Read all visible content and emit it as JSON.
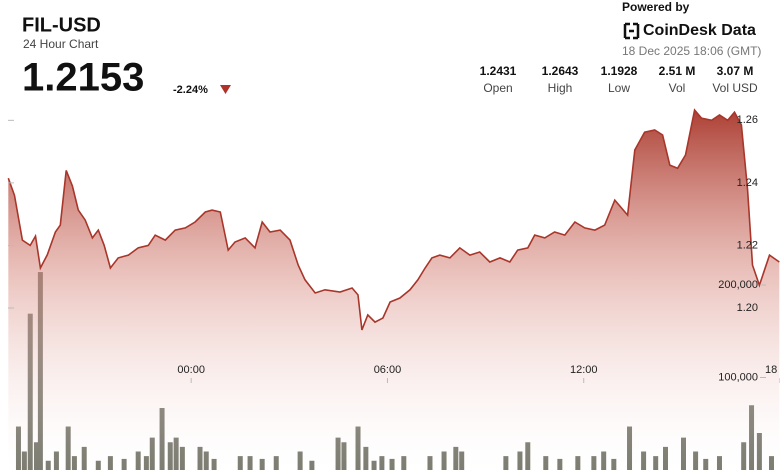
{
  "header": {
    "title": "FIL-USD",
    "subtitle": "24 Hour Chart",
    "price": "1.2153",
    "change": "-2.24%",
    "powered_by": "Powered by",
    "brand": "CoinDesk Data",
    "timestamp": "18 Dec 2025 18:06 (GMT)",
    "stats": [
      {
        "value": "1.2431",
        "label": "Open"
      },
      {
        "value": "1.2643",
        "label": "High"
      },
      {
        "value": "1.1928",
        "label": "Low"
      },
      {
        "value": "2.51 M",
        "label": "Vol"
      },
      {
        "value": "3.07 M",
        "label": "Vol USD"
      }
    ]
  },
  "chart_data": {
    "type": "line",
    "xlim": [
      -5.6,
      18
    ],
    "xticks": [
      {
        "value": 0,
        "label": "00:00"
      },
      {
        "value": 6,
        "label": "06:00"
      },
      {
        "value": 12,
        "label": "12:00"
      },
      {
        "value": 18,
        "label": "18"
      }
    ],
    "ylim": [
      1.1482,
      1.2665
    ],
    "yticks": [
      {
        "value": 1.2,
        "label": "1.20"
      },
      1.22,
      1.24,
      1.26
    ],
    "y2lim": [
      0,
      400000
    ],
    "y2ticks": [
      {
        "value": 100000,
        "label": "100,000"
      },
      {
        "value": 200000,
        "label": "200,000"
      }
    ],
    "series": [
      {
        "name": "FIL-USD",
        "color": "#a8362a",
        "x": [
          -5.59,
          -5.4,
          -5.16,
          -4.92,
          -4.76,
          -4.61,
          -4.4,
          -4.15,
          -4.0,
          -3.82,
          -3.63,
          -3.45,
          -3.24,
          -3.02,
          -2.84,
          -2.66,
          -2.47,
          -2.23,
          -1.92,
          -1.62,
          -1.31,
          -1.1,
          -0.79,
          -0.49,
          -0.18,
          0.12,
          0.43,
          0.64,
          0.89,
          1.13,
          1.34,
          1.65,
          1.95,
          2.17,
          2.41,
          2.72,
          3.02,
          3.27,
          3.48,
          3.79,
          4.09,
          4.55,
          4.92,
          5.1,
          5.22,
          5.4,
          5.62,
          5.86,
          6.08,
          6.38,
          6.69,
          6.93,
          7.15,
          7.36,
          7.6,
          7.91,
          8.21,
          8.52,
          8.82,
          9.13,
          9.44,
          9.74,
          9.98,
          10.29,
          10.5,
          10.81,
          11.11,
          11.42,
          11.73,
          12.03,
          12.34,
          12.64,
          12.95,
          13.34,
          13.56,
          13.86,
          14.17,
          14.41,
          14.63,
          14.87,
          15.11,
          15.39,
          15.6,
          15.91,
          16.15,
          16.4,
          16.61,
          16.82,
          17.01,
          17.16,
          17.37,
          17.68,
          17.98
        ],
        "values": [
          1.2415,
          1.236,
          1.2217,
          1.22,
          1.223,
          1.2128,
          1.217,
          1.2243,
          1.2265,
          1.244,
          1.239,
          1.2313,
          1.2281,
          1.2224,
          1.2249,
          1.22,
          1.2128,
          1.216,
          1.2169,
          1.2192,
          1.22,
          1.2233,
          1.2217,
          1.2249,
          1.2256,
          1.2275,
          1.2307,
          1.2313,
          1.2307,
          1.2185,
          1.2211,
          1.2224,
          1.2192,
          1.2275,
          1.2243,
          1.2249,
          1.2217,
          1.2137,
          1.209,
          1.2048,
          1.2058,
          1.2051,
          1.2064,
          1.2042,
          1.193,
          1.1978,
          1.1955,
          1.1968,
          1.2019,
          1.2032,
          1.2058,
          1.209,
          1.2128,
          1.216,
          1.2169,
          1.216,
          1.2192,
          1.2169,
          1.2179,
          1.2147,
          1.216,
          1.2147,
          1.2185,
          1.2192,
          1.2233,
          1.2224,
          1.2243,
          1.2233,
          1.2275,
          1.2256,
          1.2249,
          1.2265,
          1.2345,
          1.2297,
          1.2505,
          1.2562,
          1.2569,
          1.2553,
          1.2457,
          1.2447,
          1.2489,
          1.2633,
          1.2607,
          1.26,
          1.2617,
          1.26,
          1.2626,
          1.2585,
          1.2377,
          1.2137,
          1.2073,
          1.2169,
          1.2147
        ]
      },
      {
        "name": "Volume",
        "color": "#6e6e62",
        "axis": "y2",
        "x": [
          -5.28,
          -5.1,
          -4.92,
          -4.73,
          -4.61,
          -4.37,
          -4.12,
          -3.76,
          -3.57,
          -3.27,
          -2.84,
          -2.47,
          -2.05,
          -1.62,
          -1.37,
          -1.19,
          -0.89,
          -0.64,
          -0.46,
          -0.27,
          0.27,
          0.46,
          0.7,
          1.5,
          1.8,
          2.17,
          2.6,
          3.33,
          3.69,
          4.49,
          4.67,
          5.1,
          5.34,
          5.59,
          5.83,
          6.14,
          6.5,
          7.3,
          7.73,
          8.09,
          8.27,
          9.62,
          10.05,
          10.29,
          10.84,
          11.27,
          11.82,
          12.31,
          12.61,
          12.92,
          13.4,
          13.83,
          14.2,
          14.5,
          15.05,
          15.42,
          15.73,
          16.15,
          16.89,
          17.13,
          17.37,
          17.74
        ],
        "values": [
          47000,
          20000,
          169000,
          30000,
          214000,
          10000,
          20000,
          47000,
          15000,
          25000,
          10000,
          15000,
          12000,
          20000,
          15000,
          35000,
          67000,
          30000,
          35000,
          25000,
          25000,
          20000,
          12000,
          15000,
          15000,
          12000,
          15000,
          20000,
          10000,
          35000,
          30000,
          47000,
          25000,
          10000,
          15000,
          12000,
          15000,
          15000,
          20000,
          25000,
          20000,
          15000,
          20000,
          30000,
          15000,
          12000,
          15000,
          15000,
          20000,
          12000,
          47000,
          20000,
          15000,
          25000,
          35000,
          20000,
          12000,
          15000,
          30000,
          70000,
          40000,
          15000
        ]
      }
    ]
  }
}
